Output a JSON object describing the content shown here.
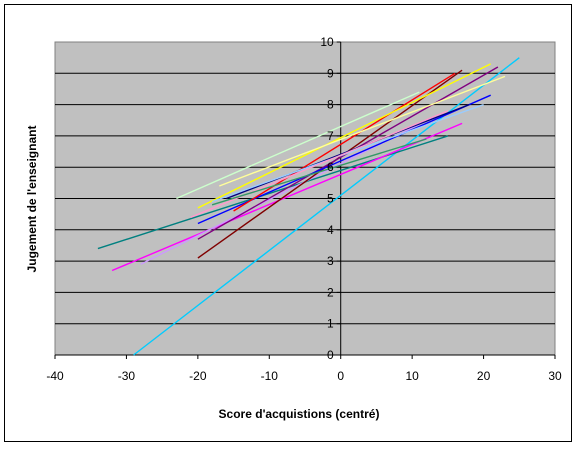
{
  "chart_data": {
    "type": "line",
    "xlabel": "Score d'acquistions (centré)",
    "ylabel": "Jugement de l'enseignant",
    "xlim": [
      -40,
      30
    ],
    "ylim": [
      0,
      10
    ],
    "x_ticks": [
      "-40",
      "-30",
      "-20",
      "-10",
      "0",
      "10",
      "20",
      "30"
    ],
    "y_ticks": [
      "0",
      "1",
      "2",
      "3",
      "4",
      "5",
      "6",
      "7",
      "8",
      "9",
      "10"
    ],
    "grid": "horizontal",
    "plot_background": "#c0c0c0",
    "series": [
      {
        "color": "#00ccff",
        "x": [
          -29,
          25
        ],
        "y": [
          0.0,
          9.5
        ]
      },
      {
        "color": "#008080",
        "x": [
          -34,
          15
        ],
        "y": [
          3.4,
          7.0
        ]
      },
      {
        "color": "#ff00ff",
        "x": [
          -32,
          17
        ],
        "y": [
          2.7,
          7.4
        ]
      },
      {
        "color": "#cc99ff",
        "x": [
          -28,
          13
        ],
        "y": [
          2.9,
          7.6
        ]
      },
      {
        "color": "#800000",
        "x": [
          -20,
          17
        ],
        "y": [
          3.1,
          9.1
        ]
      },
      {
        "color": "#800080",
        "x": [
          -20,
          22
        ],
        "y": [
          3.7,
          9.2
        ]
      },
      {
        "color": "#0000ff",
        "x": [
          -20,
          21
        ],
        "y": [
          4.2,
          8.3
        ]
      },
      {
        "color": "#ff0000",
        "x": [
          -15,
          16
        ],
        "y": [
          4.6,
          9.0
        ]
      },
      {
        "color": "#ffff00",
        "x": [
          -20,
          21
        ],
        "y": [
          4.7,
          9.3
        ]
      },
      {
        "color": "#ffff99",
        "x": [
          -17,
          23
        ],
        "y": [
          5.4,
          8.9
        ]
      },
      {
        "color": "#000080",
        "x": [
          -16,
          18
        ],
        "y": [
          5.0,
          8.0
        ]
      },
      {
        "color": "#ccffcc",
        "x": [
          -23,
          11
        ],
        "y": [
          5.0,
          8.4
        ]
      },
      {
        "color": "#99ccff",
        "x": [
          -18,
          20
        ],
        "y": [
          4.9,
          8.0
        ]
      },
      {
        "color": "#ff99cc",
        "x": [
          -21,
          15
        ],
        "y": [
          4.4,
          7.8
        ]
      },
      {
        "color": "#339966",
        "x": [
          -18,
          12
        ],
        "y": [
          4.8,
          6.9
        ]
      }
    ]
  }
}
